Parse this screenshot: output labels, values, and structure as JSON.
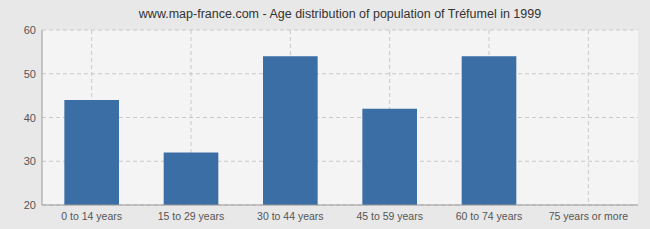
{
  "chart_data": {
    "type": "bar",
    "title": "www.map-france.com - Age distribution of population of Tréfumel in 1999",
    "categories": [
      "0 to 14 years",
      "15 to 29 years",
      "30 to 44 years",
      "45 to 59 years",
      "60 to 74 years",
      "75 years or more"
    ],
    "values": [
      44,
      32,
      54,
      42,
      54,
      20
    ],
    "color": "#3a6ea5",
    "ylim": [
      20,
      60
    ],
    "yticks": [
      20,
      30,
      40,
      50,
      60
    ],
    "grid": true
  }
}
